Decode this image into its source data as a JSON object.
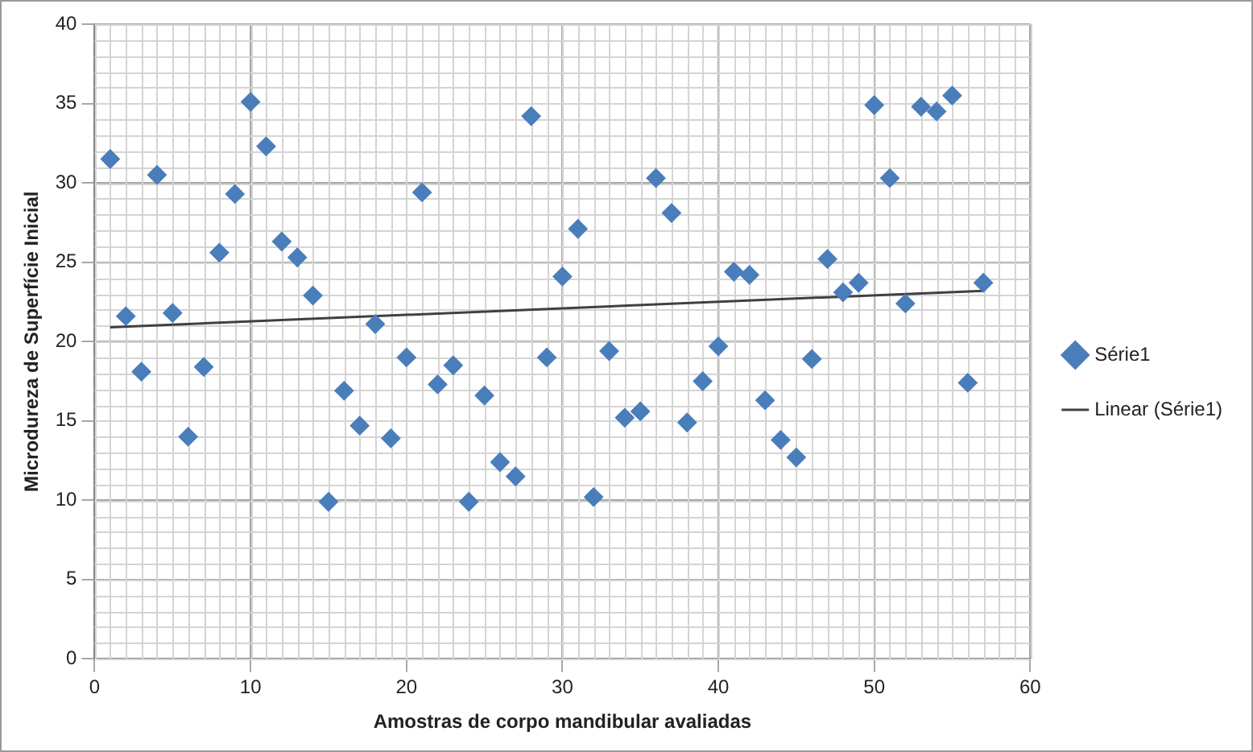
{
  "chart_data": {
    "type": "scatter",
    "xlabel": "Amostras de corpo mandibular avaliadas",
    "ylabel": "Microdureza de Superfície Inicial",
    "xlim": [
      0,
      60
    ],
    "xticks": [
      0,
      10,
      20,
      30,
      40,
      50,
      60
    ],
    "ylim": [
      0,
      40
    ],
    "yticks": [
      0,
      5,
      10,
      15,
      20,
      25,
      30,
      35,
      40
    ],
    "grid": true,
    "legend": "right",
    "series": [
      {
        "name": "Série1",
        "color": "#4a7ebb",
        "marker": "diamond",
        "x": [
          1,
          2,
          3,
          4,
          5,
          6,
          7,
          8,
          9,
          10,
          11,
          12,
          13,
          14,
          15,
          16,
          17,
          18,
          19,
          20,
          21,
          22,
          23,
          24,
          25,
          26,
          27,
          28,
          29,
          30,
          31,
          32,
          33,
          34,
          35,
          36,
          37,
          38,
          39,
          40,
          41,
          42,
          43,
          44,
          45,
          46,
          47,
          48,
          49,
          50,
          51,
          52,
          53,
          54,
          55,
          56,
          57
        ],
        "values": [
          31.5,
          21.6,
          18.1,
          30.5,
          21.8,
          14.0,
          18.4,
          25.6,
          29.3,
          35.1,
          32.3,
          26.3,
          25.3,
          22.9,
          9.9,
          16.9,
          14.7,
          21.1,
          13.9,
          19.0,
          29.4,
          17.3,
          18.5,
          9.9,
          16.6,
          12.4,
          11.5,
          34.2,
          19.0,
          24.1,
          27.1,
          10.2,
          19.4,
          15.2,
          15.6,
          30.3,
          28.1,
          14.9,
          17.5,
          19.7,
          24.4,
          24.2,
          16.3,
          13.8,
          12.7,
          18.9,
          25.2,
          23.1,
          23.7,
          34.9,
          30.3,
          22.4,
          34.8,
          34.5,
          35.5,
          17.4,
          23.7
        ]
      },
      {
        "name": "Linear (Série1)",
        "type": "line",
        "marker": "none",
        "color": "#404040",
        "x": [
          1,
          57
        ],
        "values": [
          20.9,
          23.2
        ]
      }
    ]
  }
}
